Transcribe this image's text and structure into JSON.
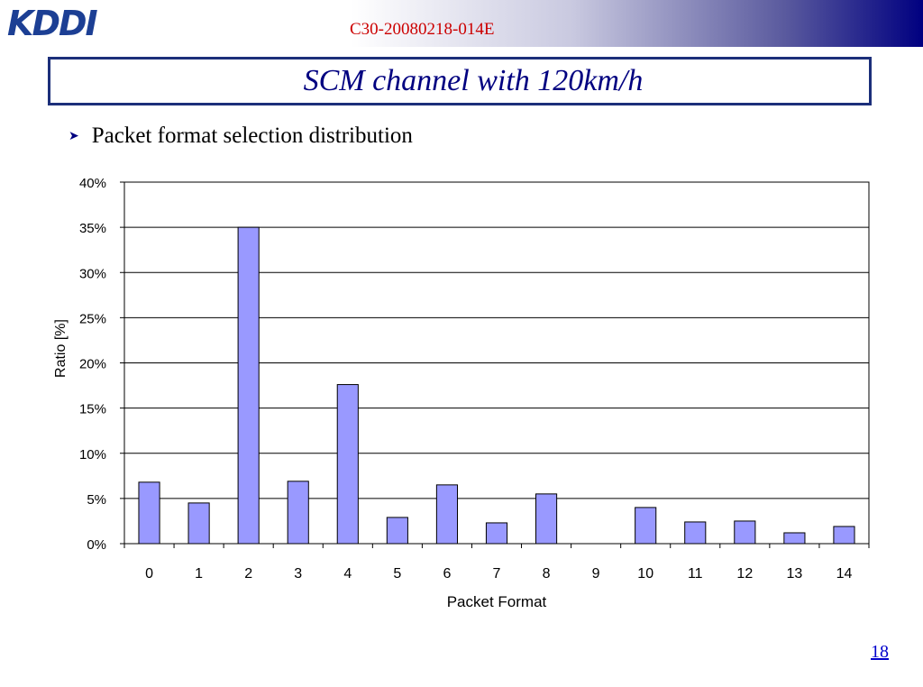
{
  "header": {
    "logo_text": "KDDI",
    "doc_id": "C30-20080218-014E"
  },
  "slide": {
    "title": "SCM channel with 120km/h",
    "bullet": "Packet format selection distribution",
    "page_number": "18"
  },
  "colors": {
    "bar_fill": "#9999ff",
    "title_text": "#000080",
    "title_border": "#1c2f7a",
    "doc_id": "#cc0000"
  },
  "chart_data": {
    "type": "bar",
    "categories": [
      "0",
      "1",
      "2",
      "3",
      "4",
      "5",
      "6",
      "7",
      "8",
      "9",
      "10",
      "11",
      "12",
      "13",
      "14"
    ],
    "values": [
      6.8,
      4.5,
      35.0,
      6.9,
      17.6,
      2.9,
      6.5,
      2.3,
      5.5,
      0.0,
      4.0,
      2.4,
      2.5,
      1.2,
      1.9
    ],
    "xlabel": "Packet Format",
    "ylabel": "Ratio [%]",
    "ylim": [
      0,
      40
    ],
    "yticks": [
      "0%",
      "5%",
      "10%",
      "15%",
      "20%",
      "25%",
      "30%",
      "35%",
      "40%"
    ],
    "grid": true,
    "legend": "none"
  }
}
